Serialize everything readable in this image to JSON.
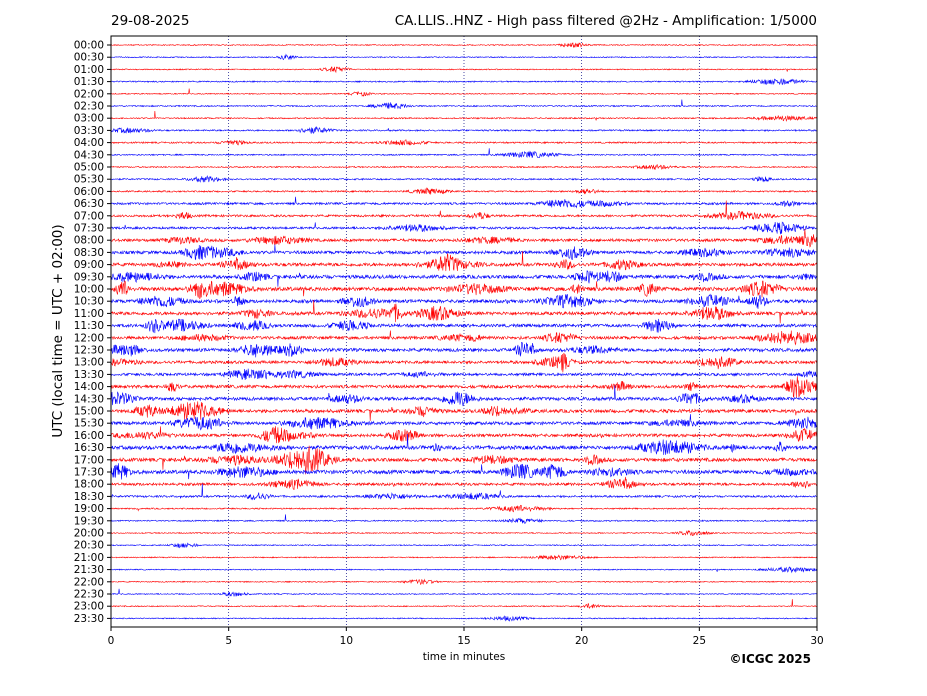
{
  "chart_data": {
    "type": "line",
    "date": "29-08-2025",
    "title": "CA.LLIS..HNZ - High pass filtered @2Hz - Amplification: 1/5000",
    "ylabel": "UTC (local time = UTC + 02:00)",
    "xlabel": "time in minutes",
    "copyright": "©ICGC 2025",
    "xlim": [
      0,
      30
    ],
    "x_ticks": [
      "0",
      "5",
      "10",
      "15",
      "20",
      "25",
      "30"
    ],
    "row_labels": [
      "00:00",
      "00:30",
      "01:00",
      "01:30",
      "02:00",
      "02:30",
      "03:00",
      "03:30",
      "04:00",
      "04:30",
      "05:00",
      "05:30",
      "06:00",
      "06:30",
      "07:00",
      "07:30",
      "08:00",
      "08:30",
      "09:00",
      "09:30",
      "10:00",
      "10:30",
      "11:00",
      "11:30",
      "12:00",
      "12:30",
      "13:00",
      "13:30",
      "14:00",
      "14:30",
      "15:00",
      "15:30",
      "16:00",
      "16:30",
      "17:00",
      "17:30",
      "18:00",
      "18:30",
      "19:00",
      "19:30",
      "20:00",
      "20:30",
      "21:00",
      "21:30",
      "22:00",
      "22:30",
      "23:00",
      "23:30"
    ],
    "trace_colors": [
      "#ff0000",
      "#0000ff"
    ],
    "grid_x": true,
    "row_activity": [
      0.1,
      0.1,
      0.1,
      0.15,
      0.1,
      0.15,
      0.15,
      0.2,
      0.2,
      0.15,
      0.15,
      0.2,
      0.2,
      0.35,
      0.35,
      0.35,
      0.5,
      0.55,
      0.6,
      0.65,
      0.75,
      0.6,
      0.6,
      0.55,
      0.55,
      0.6,
      0.5,
      0.45,
      0.55,
      0.6,
      0.6,
      0.55,
      0.55,
      0.7,
      0.65,
      0.7,
      0.45,
      0.3,
      0.15,
      0.15,
      0.1,
      0.1,
      0.1,
      0.1,
      0.1,
      0.1,
      0.1,
      0.1
    ]
  }
}
